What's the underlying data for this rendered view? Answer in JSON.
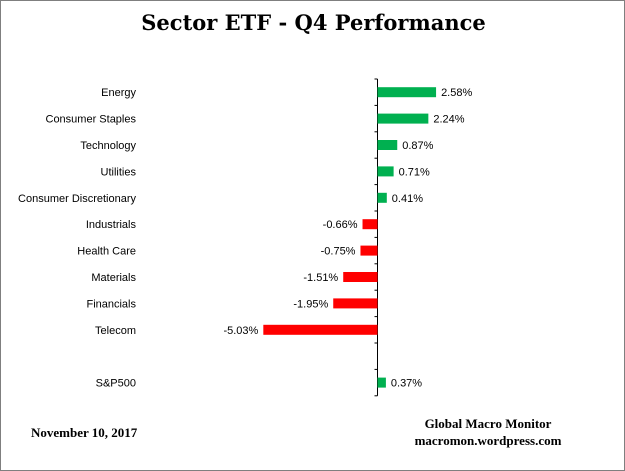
{
  "chart_data": {
    "type": "bar",
    "orientation": "horizontal",
    "title": "Sector ETF - Q4 Performance",
    "categories": [
      "Energy",
      "Consumer Staples",
      "Technology",
      "Utilities",
      "Consumer Discretionary",
      "Industrials",
      "Health Care",
      "Materials",
      "Financials",
      "Telecom",
      "S&P500"
    ],
    "values": [
      2.58,
      2.24,
      0.87,
      0.71,
      0.41,
      -0.66,
      -0.75,
      -1.51,
      -1.95,
      -5.03,
      0.37
    ],
    "value_labels": [
      "2.58%",
      "2.24%",
      "0.87%",
      "0.71%",
      "0.41%",
      "-0.66%",
      "-0.75%",
      "-1.51%",
      "-1.95%",
      "-5.03%",
      "0.37%"
    ],
    "unit": "%",
    "colors": {
      "positive": "#00b050",
      "negative": "#ff0000"
    },
    "grid": false,
    "legend": "none"
  },
  "footer": {
    "date": "November 10,  2017",
    "source_name": "Global Macro Monitor",
    "source_url": "macromon.wordpress.com"
  }
}
